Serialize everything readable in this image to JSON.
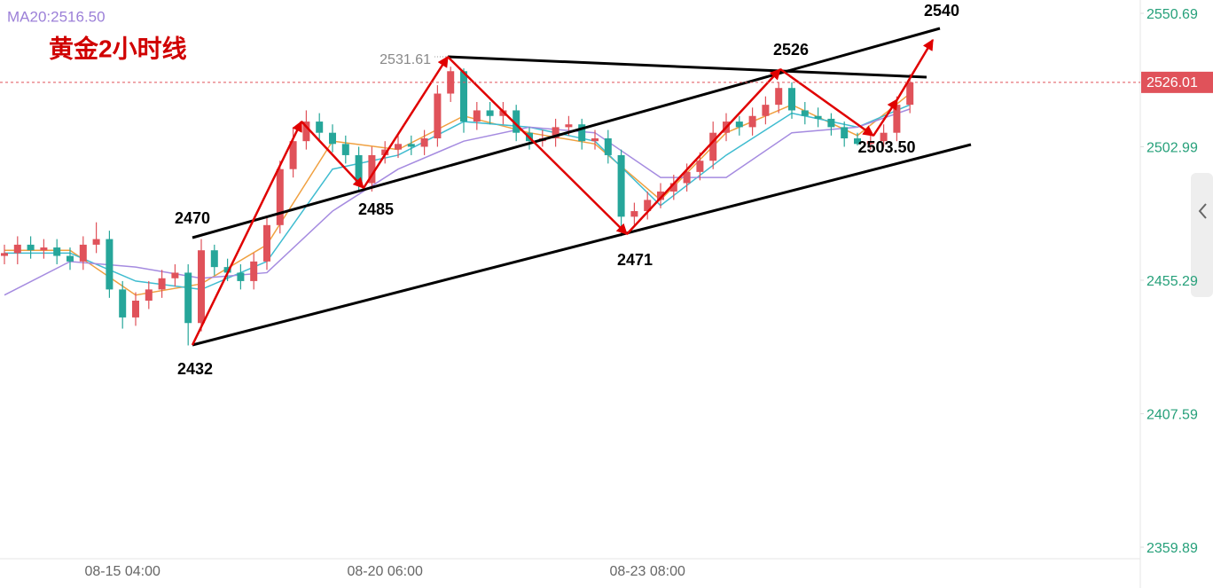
{
  "chart_data": {
    "type": "candlestick",
    "title": "黄金2小时线",
    "ma_label": "MA20:2516.50",
    "categories": [
      null,
      null,
      null,
      null,
      null,
      null,
      null,
      null,
      null,
      "08-15 04:00",
      null,
      null,
      null,
      null,
      null,
      null,
      null,
      null,
      null,
      null,
      null,
      null,
      null,
      null,
      null,
      null,
      null,
      null,
      null,
      "08-20 06:00",
      null,
      null,
      null,
      null,
      null,
      null,
      null,
      null,
      null,
      null,
      null,
      null,
      null,
      null,
      null,
      null,
      null,
      null,
      null,
      "08-23 08:00",
      null,
      null,
      null,
      null,
      null,
      null,
      null,
      null,
      null,
      null,
      null,
      null,
      null,
      null,
      null,
      null,
      null,
      null,
      null,
      null
    ],
    "open": [
      2464,
      2465,
      2468,
      2466,
      2467,
      2464,
      2462,
      2468,
      2470,
      2452,
      2442,
      2448,
      2452,
      2456,
      2458,
      2440,
      2466,
      2460,
      2458,
      2455,
      2462,
      2475,
      2495,
      2505,
      2512,
      2508,
      2504,
      2500,
      2490,
      2500,
      2502,
      2504,
      2503,
      2506,
      2522,
      2530,
      2512,
      2516,
      2514,
      2516,
      2508,
      2505,
      2506,
      2510,
      2511,
      2505,
      2506,
      2500,
      2478,
      2480,
      2484,
      2487,
      2490,
      2494,
      2498,
      2508,
      2512,
      2510,
      2514,
      2518,
      2524,
      2516,
      2514,
      2513,
      2510,
      2506,
      2504,
      2505,
      2508,
      2518
    ],
    "high": [
      2468,
      2471,
      2471,
      2470,
      2470,
      2467,
      2471,
      2476,
      2473,
      2455,
      2451,
      2455,
      2459,
      2461,
      2461,
      2470,
      2468,
      2463,
      2461,
      2465,
      2478,
      2498,
      2510,
      2516,
      2515,
      2511,
      2507,
      2503,
      2503,
      2505,
      2507,
      2507,
      2509,
      2525,
      2531.61,
      2531,
      2519,
      2519,
      2519,
      2518,
      2510,
      2509,
      2513,
      2514,
      2513,
      2509,
      2509,
      2502,
      2483,
      2487,
      2490,
      2493,
      2497,
      2501,
      2512,
      2515,
      2514,
      2517,
      2521,
      2526,
      2526,
      2519,
      2517,
      2515,
      2512,
      2508,
      2508,
      2511,
      2521,
      2529
    ],
    "low": [
      2461,
      2461,
      2463,
      2463,
      2461,
      2459,
      2459,
      2465,
      2449,
      2438,
      2439,
      2445,
      2449,
      2453,
      2432,
      2437,
      2457,
      2455,
      2452,
      2452,
      2459,
      2472,
      2492,
      2502,
      2505,
      2501,
      2497,
      2487,
      2487,
      2497,
      2499,
      2500,
      2500,
      2503,
      2519,
      2508,
      2509,
      2511,
      2511,
      2505,
      2502,
      2503,
      2503,
      2507,
      2502,
      2502,
      2497,
      2471,
      2475,
      2477,
      2481,
      2484,
      2487,
      2491,
      2495,
      2505,
      2507,
      2507,
      2511,
      2515,
      2513,
      2511,
      2510,
      2507,
      2503,
      2503.5,
      2502,
      2503,
      2505,
      2515
    ],
    "close": [
      2465,
      2468,
      2466,
      2467,
      2464,
      2462,
      2468,
      2470,
      2452,
      2442,
      2448,
      2452,
      2456,
      2458,
      2440,
      2466,
      2460,
      2458,
      2455,
      2462,
      2475,
      2495,
      2505,
      2512,
      2508,
      2504,
      2500,
      2490,
      2500,
      2502,
      2504,
      2503,
      2506,
      2522,
      2530,
      2512,
      2516,
      2514,
      2516,
      2508,
      2505,
      2506,
      2510,
      2511,
      2505,
      2506,
      2500,
      2478,
      2480,
      2484,
      2487,
      2490,
      2494,
      2498,
      2508,
      2512,
      2510,
      2514,
      2518,
      2524,
      2516,
      2514,
      2513,
      2510,
      2506,
      2504,
      2505,
      2508,
      2518,
      2526
    ],
    "up_color": "#e0525a",
    "down_color": "#26a69a",
    "ma_x": [
      0,
      5,
      10,
      15,
      20,
      25,
      30,
      35,
      40,
      45,
      50,
      55,
      60,
      65,
      69
    ],
    "ma_series": [
      {
        "color": "#f0a040",
        "values": [
          2466,
          2466,
          2450,
          2454,
          2468,
          2505,
          2502,
          2514,
          2508,
          2504,
          2484,
          2508,
          2518,
          2507,
          2522
        ]
      },
      {
        "color": "#3fbcd0",
        "values": [
          2465,
          2465,
          2455,
          2452,
          2462,
          2495,
          2500,
          2512,
          2510,
          2505,
          2482,
          2500,
          2515,
          2510,
          2518
        ]
      },
      {
        "color": "#a58be0",
        "values": [
          2450,
          2462,
          2460,
          2456,
          2458,
          2480,
          2495,
          2505,
          2510,
          2508,
          2492,
          2492,
          2508,
          2510,
          2516.5
        ]
      }
    ],
    "ylim": [
      2359.89,
      2550.69
    ],
    "yticks": [
      2359.89,
      2407.59,
      2455.29,
      2502.99,
      2550.69
    ],
    "last_price": 2526.01,
    "high_marker": "2531.61",
    "annotations": [
      "2470",
      "2432",
      "2485",
      "2471",
      "2526",
      "2503.50",
      "2540"
    ]
  }
}
